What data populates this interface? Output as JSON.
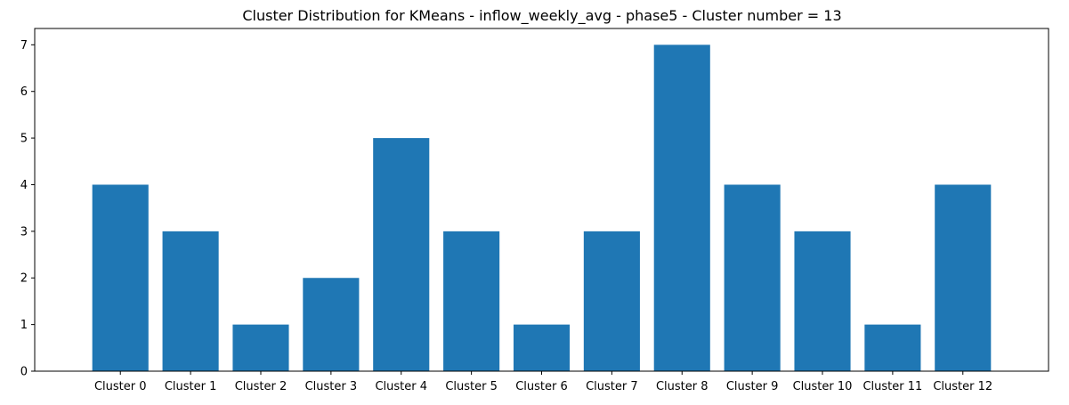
{
  "chart_data": {
    "type": "bar",
    "title": "Cluster Distribution for KMeans - inflow_weekly_avg - phase5 - Cluster number = 13",
    "xlabel": "",
    "ylabel": "",
    "categories": [
      "Cluster 0",
      "Cluster 1",
      "Cluster 2",
      "Cluster 3",
      "Cluster 4",
      "Cluster 5",
      "Cluster 6",
      "Cluster 7",
      "Cluster 8",
      "Cluster 9",
      "Cluster 10",
      "Cluster 11",
      "Cluster 12"
    ],
    "values": [
      4,
      3,
      1,
      2,
      5,
      3,
      1,
      3,
      7,
      4,
      3,
      1,
      4
    ],
    "ylim": [
      0,
      7.35
    ],
    "yticks": [
      0,
      1,
      2,
      3,
      4,
      5,
      6,
      7
    ],
    "grid": false,
    "legend": "none",
    "colors": {
      "bar": "#1f77b4",
      "axis": "#000000",
      "background": "#ffffff"
    }
  }
}
